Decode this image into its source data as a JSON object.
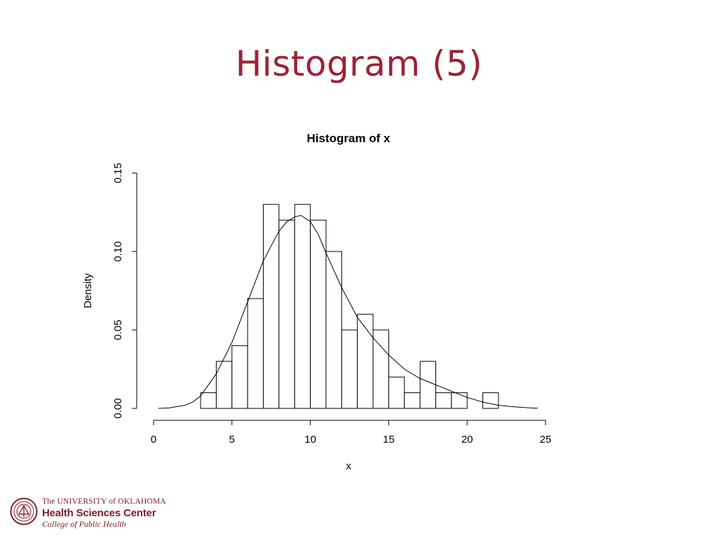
{
  "slide": {
    "title": "Histogram (5)"
  },
  "logo": {
    "line1": "The UNIVERSITY of OKLAHOMA",
    "line2": "Health Sciences Center",
    "line3": "College of Public Health"
  },
  "chart_data": {
    "type": "bar",
    "title": "Histogram of x",
    "xlabel": "x",
    "ylabel": "Density",
    "xlim": [
      0,
      25
    ],
    "ylim": [
      0,
      0.15
    ],
    "x_ticks": [
      "0",
      "5",
      "10",
      "15",
      "20",
      "25"
    ],
    "y_ticks": [
      "0.00",
      "0.05",
      "0.10",
      "0.15"
    ],
    "bin_width": 1,
    "bins": [
      {
        "start": 3,
        "density": 0.01
      },
      {
        "start": 4,
        "density": 0.03
      },
      {
        "start": 5,
        "density": 0.04
      },
      {
        "start": 6,
        "density": 0.07
      },
      {
        "start": 7,
        "density": 0.13
      },
      {
        "start": 8,
        "density": 0.12
      },
      {
        "start": 9,
        "density": 0.13
      },
      {
        "start": 10,
        "density": 0.12
      },
      {
        "start": 11,
        "density": 0.1
      },
      {
        "start": 12,
        "density": 0.05
      },
      {
        "start": 13,
        "density": 0.06
      },
      {
        "start": 14,
        "density": 0.05
      },
      {
        "start": 15,
        "density": 0.02
      },
      {
        "start": 16,
        "density": 0.01
      },
      {
        "start": 17,
        "density": 0.03
      },
      {
        "start": 18,
        "density": 0.01
      },
      {
        "start": 19,
        "density": 0.01
      },
      {
        "start": 20,
        "density": 0.0
      },
      {
        "start": 21,
        "density": 0.01
      }
    ],
    "density_curve": {
      "x": [
        0.3,
        1,
        2,
        2.5,
        3,
        4,
        5,
        6,
        7,
        8,
        8.5,
        9,
        9.4,
        10,
        10.5,
        11,
        12,
        13,
        14,
        15,
        16,
        17,
        18,
        19,
        20,
        21,
        22,
        23,
        24,
        24.5
      ],
      "y": [
        0.0,
        0.0003,
        0.002,
        0.004,
        0.008,
        0.022,
        0.042,
        0.068,
        0.094,
        0.113,
        0.119,
        0.122,
        0.123,
        0.119,
        0.111,
        0.099,
        0.077,
        0.058,
        0.045,
        0.034,
        0.025,
        0.019,
        0.015,
        0.011,
        0.007,
        0.004,
        0.002,
        0.001,
        0.0003,
        0.0001
      ]
    }
  }
}
